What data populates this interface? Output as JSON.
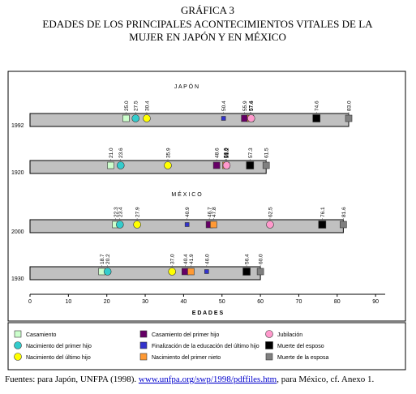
{
  "chart_data": {
    "type": "event-bars",
    "title": "GRÁFICA 3",
    "subtitle": [
      "EDADES DE LOS PRINCIPALES ACONTECIMIENTOS VITALES DE LA",
      "MUJER EN JAPÓN Y EN MÉXICO"
    ],
    "panels": [
      {
        "title": "J A P Ó N",
        "categories": [
          "1992",
          "1920"
        ]
      },
      {
        "title": "M É X I C O",
        "categories": [
          "2000",
          "1930"
        ]
      }
    ],
    "series": [
      {
        "name": "Casamiento",
        "color": "#ccffcc",
        "shape": "square",
        "values": [
          25.0,
          21.0,
          22.3,
          18.7
        ],
        "value_labels": [
          "25.0",
          "21.0",
          "22.3",
          "18.7"
        ]
      },
      {
        "name": "Nacimiento del primer hijo",
        "color": "#33cccc",
        "shape": "circle",
        "values": [
          27.5,
          23.6,
          23.4,
          20.2
        ],
        "value_labels": [
          "27.5",
          "23.6",
          "23.4",
          "20.2"
        ]
      },
      {
        "name": "Nacimiento del último hijo",
        "color": "#ffff00",
        "shape": "circle",
        "values": [
          30.4,
          35.9,
          27.9,
          37.0
        ],
        "value_labels": [
          "30.4",
          "35.9",
          "27.9",
          "37.0"
        ]
      },
      {
        "name": "Casamiento del primer hijo",
        "color": "#660066",
        "shape": "square",
        "values": [
          55.9,
          48.6,
          46.7,
          40.4
        ],
        "value_labels": [
          "55.9",
          "48.6",
          "46.7",
          "40.4"
        ]
      },
      {
        "name": "Finalización de la educación del último hijo",
        "color": "#3333cc",
        "shape": "small-square",
        "values": [
          50.4,
          50.9,
          40.9,
          46.0
        ],
        "value_labels": [
          "50.4",
          "50.9",
          "40.9",
          "46.0"
        ]
      },
      {
        "name": "Nacimiento del primer nieto",
        "color": "#ff9933",
        "shape": "square",
        "values": [
          57.4,
          51.0,
          47.8,
          41.9
        ],
        "value_labels": [
          "57.4",
          "51.0",
          "47.8",
          "41.9"
        ]
      },
      {
        "name": "Jubilación",
        "color": "#ff99cc",
        "shape": "circle",
        "values": [
          57.6,
          51.2,
          62.5,
          null
        ],
        "value_labels": [
          "57.6",
          "51.2",
          "62.5",
          null
        ]
      },
      {
        "name": "Muerte del esposo",
        "color": "#000000",
        "shape": "big-square",
        "values": [
          74.6,
          57.3,
          76.1,
          56.4
        ],
        "value_labels": [
          "74.6",
          "57.3",
          "76.1",
          "56.4"
        ]
      },
      {
        "name": "Muerte de la esposa",
        "color": "#808080",
        "shape": "square",
        "values": [
          83.0,
          61.5,
          81.6,
          60.0
        ],
        "value_labels": [
          "83.0",
          "61.5",
          "81.6",
          "60.0"
        ]
      }
    ],
    "bar_color": "#c0c0c0",
    "xlabel": "E D A D E S",
    "xlim": [
      0,
      92.5
    ],
    "xticks": [
      0,
      10,
      20,
      30,
      40,
      50,
      60,
      70,
      80,
      90
    ],
    "source": [
      "Fuentes: para Japón, UNFPA (1998). ",
      "www.unfpa.org/swp/1998/pdffiles.htm",
      ", para México, cf. Anexo 1."
    ]
  }
}
